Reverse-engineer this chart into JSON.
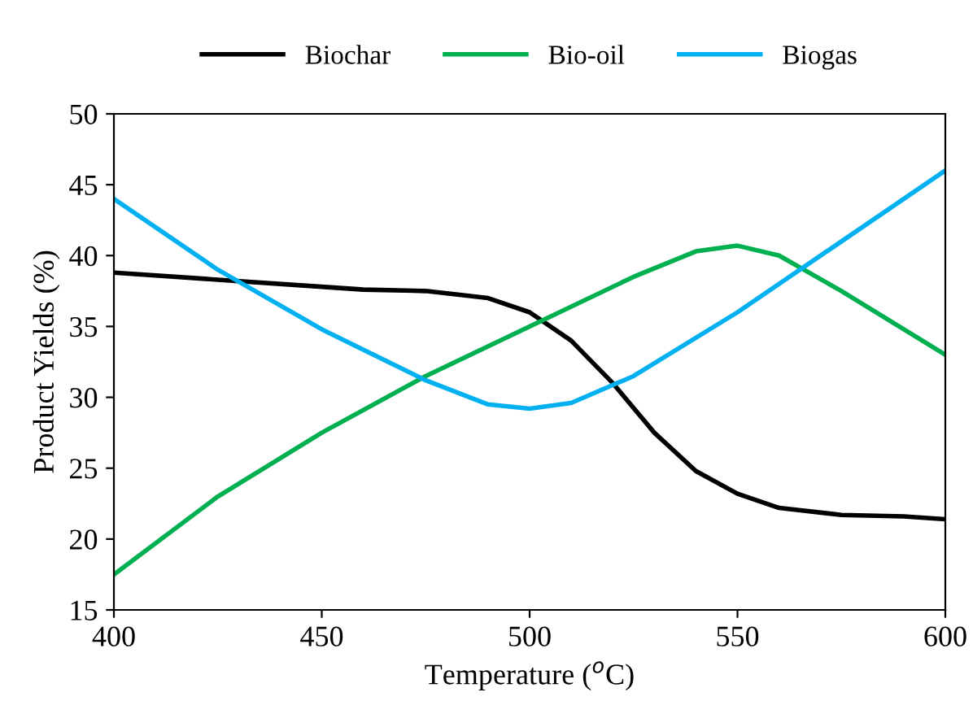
{
  "chart_data": {
    "type": "line",
    "xlabel": "Temperature ($^{o}$C)",
    "ylabel": "Product Yields (%)",
    "x": [
      400,
      425,
      450,
      460,
      475,
      490,
      500,
      510,
      520,
      530,
      540,
      550,
      560,
      575,
      590,
      600
    ],
    "series": [
      {
        "name": "Biochar",
        "color": "#000000",
        "values": [
          38.8,
          38.3,
          37.8,
          37.6,
          37.5,
          37.0,
          36.0,
          34.0,
          31.0,
          27.5,
          24.8,
          23.2,
          22.2,
          21.7,
          21.6,
          21.4
        ]
      },
      {
        "name": "Bio-oil",
        "color": "#00b050",
        "x": [
          400,
          425,
          450,
          475,
          500,
          525,
          540,
          550,
          560,
          575,
          600
        ],
        "values": [
          17.5,
          23.0,
          27.5,
          31.5,
          35.0,
          38.5,
          40.3,
          40.7,
          40.0,
          37.5,
          33.0
        ]
      },
      {
        "name": "Biogas",
        "color": "#00b0f0",
        "x": [
          400,
          425,
          450,
          475,
          490,
          500,
          510,
          525,
          550,
          575,
          600
        ],
        "values": [
          44.0,
          39.0,
          34.8,
          31.2,
          29.5,
          29.2,
          29.6,
          31.5,
          36.0,
          41.0,
          46.0
        ]
      }
    ],
    "xlim": [
      400,
      600
    ],
    "ylim": [
      15,
      50
    ],
    "xticks": [
      400,
      450,
      500,
      550,
      600
    ],
    "yticks": [
      15,
      20,
      25,
      30,
      35,
      40,
      45,
      50
    ],
    "grid": false,
    "legend": "top",
    "marker": "none",
    "line_style": "solid"
  }
}
